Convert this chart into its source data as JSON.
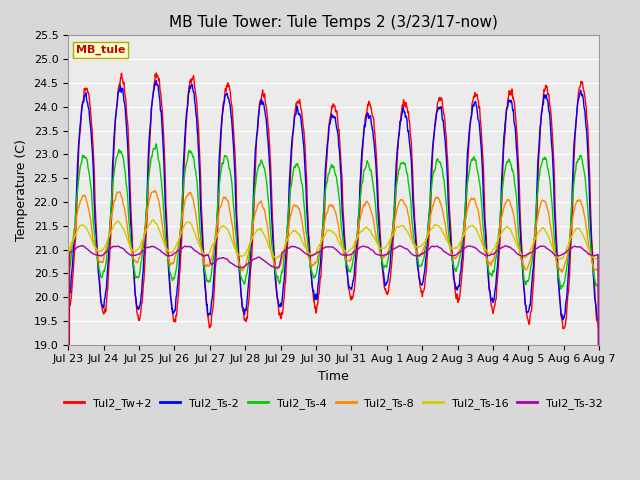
{
  "title": "MB Tule Tower: Tule Temps 2 (3/23/17-now)",
  "xlabel": "Time",
  "ylabel": "Temperature (C)",
  "station_label": "MB_tule",
  "ylim": [
    19.0,
    25.5
  ],
  "yticks": [
    19.0,
    19.5,
    20.0,
    20.5,
    21.0,
    21.5,
    22.0,
    22.5,
    23.0,
    23.5,
    24.0,
    24.5,
    25.0,
    25.5
  ],
  "x_tick_labels": [
    "Jul 23",
    "Jul 24",
    "Jul 25",
    "Jul 26",
    "Jul 27",
    "Jul 28",
    "Jul 29",
    "Jul 30",
    "Jul 31",
    "Aug 1",
    "Aug 2",
    "Aug 3",
    "Aug 4",
    "Aug 5",
    "Aug 6",
    "Aug 7"
  ],
  "num_days": 15,
  "colors": {
    "Tul2_Tw+2": "#ff0000",
    "Tul2_Ts-2": "#0000ff",
    "Tul2_Ts-4": "#00cc00",
    "Tul2_Ts-8": "#ff8800",
    "Tul2_Ts-16": "#cccc00",
    "Tul2_Ts-32": "#aa00aa"
  },
  "background_color": "#d8d8d8",
  "plot_bg_color": "#ebebeb",
  "grid_color": "#ffffff",
  "title_fontsize": 11,
  "axis_fontsize": 9,
  "tick_fontsize": 8,
  "legend_fontsize": 8,
  "linewidth": 1.0
}
